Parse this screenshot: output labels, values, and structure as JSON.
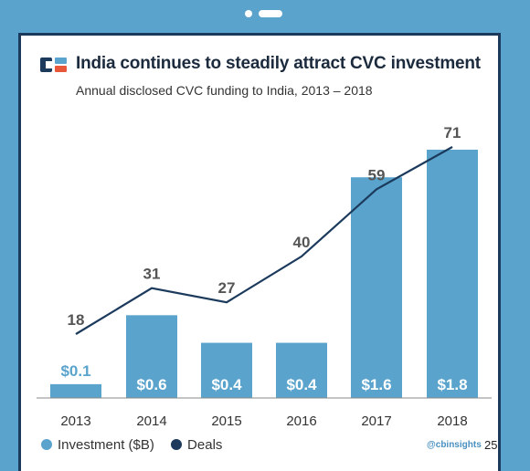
{
  "header": {
    "title": "India continues to steadily attract CVC investment",
    "subtitle": "Annual disclosed CVC funding to India, 2013 – 2018"
  },
  "legend": {
    "investment": "Investment ($B)",
    "deals": "Deals"
  },
  "footer": {
    "credit": "@cbinsights",
    "page_number": "25"
  },
  "colors": {
    "bar": "#5aa3cc",
    "line": "#1b3a5c",
    "background": "#5aa3cc",
    "frame": "#1b3a5c"
  },
  "chart_data": {
    "type": "bar",
    "categories": [
      "2013",
      "2014",
      "2015",
      "2016",
      "2017",
      "2018"
    ],
    "series": [
      {
        "name": "Investment ($B)",
        "type": "bar",
        "values": [
          0.1,
          0.6,
          0.4,
          0.4,
          1.6,
          1.8
        ],
        "labels": [
          "$0.1",
          "$0.6",
          "$0.4",
          "$0.4",
          "$1.6",
          "$1.8"
        ]
      },
      {
        "name": "Deals",
        "type": "line",
        "values": [
          18,
          31,
          27,
          40,
          59,
          71
        ]
      }
    ],
    "title": "India continues to steadily attract CVC investment",
    "subtitle": "Annual disclosed CVC funding to India, 2013 – 2018",
    "grid": false,
    "legend_position": "bottom-left"
  }
}
